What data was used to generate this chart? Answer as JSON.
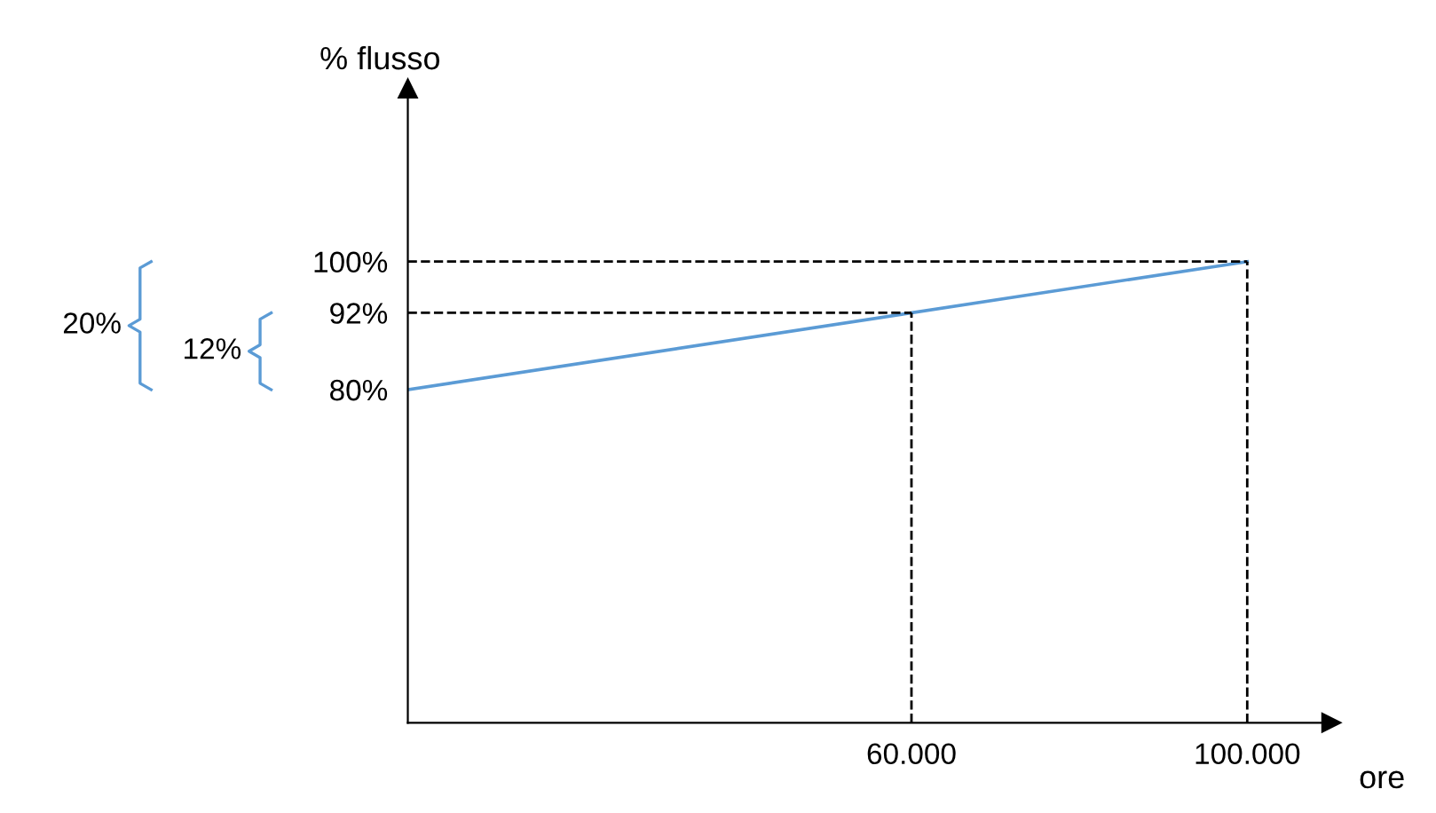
{
  "chart_data": {
    "type": "line",
    "xlabel": "ore",
    "ylabel": "% flusso",
    "x": [
      0,
      100000
    ],
    "series": [
      {
        "color": "#5b9bd5",
        "values": [
          80,
          100
        ]
      }
    ],
    "xlim": [
      0,
      110000
    ],
    "ylim": [
      28,
      127
    ],
    "xticks": [
      {
        "value": 60000,
        "label": "60.000"
      },
      {
        "value": 100000,
        "label": "100.000"
      }
    ],
    "yticks": [
      {
        "value": 80,
        "label": "80%"
      },
      {
        "value": 92,
        "label": "92%"
      },
      {
        "value": 100,
        "label": "100%"
      }
    ],
    "ref_lines": [
      {
        "axis": "y",
        "value": 92,
        "label": null,
        "color": "#000000",
        "line_style": "dashed"
      },
      {
        "axis": "x",
        "value": 60000,
        "label": null,
        "color": "#000000",
        "line_style": "dashed"
      },
      {
        "axis": "y",
        "value": 100,
        "label": null,
        "color": "#000000",
        "line_style": "dashed"
      },
      {
        "axis": "x",
        "value": 100000,
        "label": null,
        "color": "#000000",
        "line_style": "dashed"
      }
    ],
    "annotations": [
      "20%",
      "12%"
    ],
    "grid": false,
    "legend": false,
    "marker": "none",
    "line_style": "solid"
  }
}
